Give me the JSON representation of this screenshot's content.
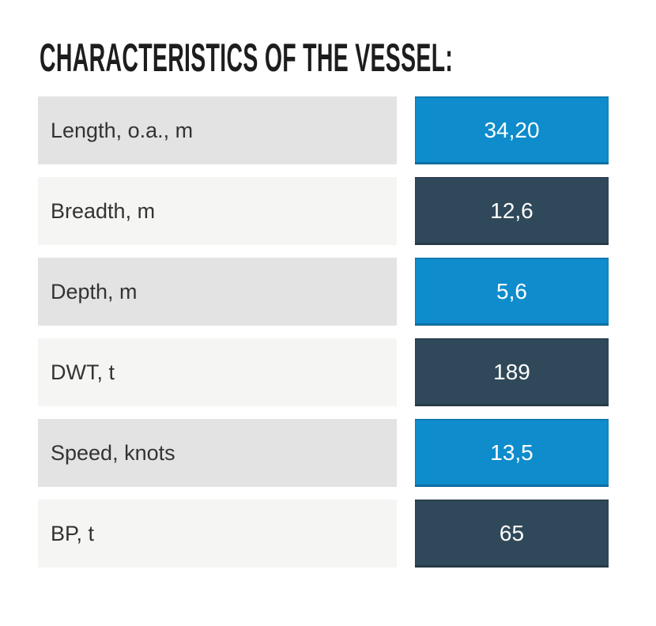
{
  "title": "CHARACTERISTICS OF THE VESSEL:",
  "colors": {
    "accent_blue": "#0e8ccc",
    "dark_slate": "#30495a",
    "row_gray": "#e3e3e3",
    "row_light": "#f5f5f3",
    "title_text": "#1d1d1d",
    "label_text": "#333333",
    "value_text": "#ffffff"
  },
  "table": {
    "rows": [
      {
        "label": "Length, o.a., m",
        "value": "34,20",
        "value_style": "blue"
      },
      {
        "label": "Breadth, m",
        "value": "12,6",
        "value_style": "dark"
      },
      {
        "label": "Depth, m",
        "value": "5,6",
        "value_style": "blue"
      },
      {
        "label": "DWT, t",
        "value": "189",
        "value_style": "dark"
      },
      {
        "label": "Speed, knots",
        "value": "13,5",
        "value_style": "blue"
      },
      {
        "label": "BP, t",
        "value": "65",
        "value_style": "dark"
      }
    ]
  }
}
